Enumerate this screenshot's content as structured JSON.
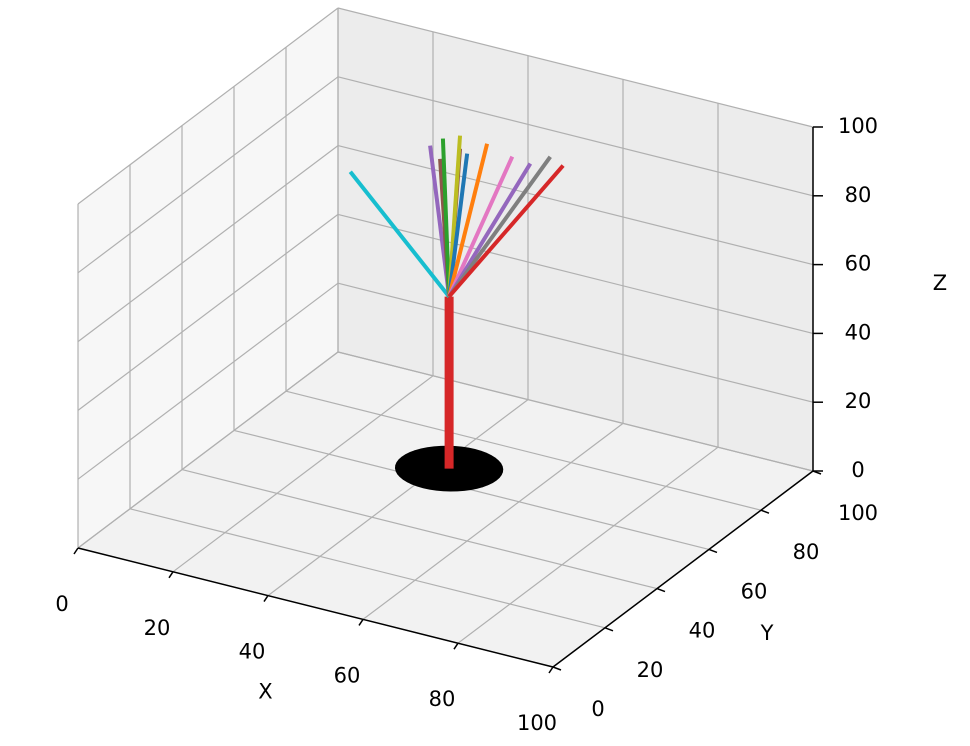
{
  "chart_data": {
    "type": "line3d",
    "xlabel": "X",
    "ylabel": "Y",
    "zlabel": "Z",
    "xlim": [
      0,
      100
    ],
    "ylim": [
      0,
      100
    ],
    "zlim": [
      0,
      100
    ],
    "xticks": [
      0,
      20,
      40,
      60,
      80,
      100
    ],
    "yticks": [
      0,
      20,
      40,
      60,
      80,
      100
    ],
    "zticks": [
      0,
      20,
      40,
      60,
      80,
      100
    ],
    "grid": true,
    "series": [
      {
        "color": "#d62728",
        "linewidth": 9,
        "x": [
          42,
          42
        ],
        "y": [
          66,
          66
        ],
        "z": [
          0,
          50
        ]
      },
      {
        "color": "#17becf",
        "linewidth": 4,
        "x": [
          42,
          21.2
        ],
        "y": [
          66,
          66
        ],
        "z": [
          50,
          79.1
        ]
      },
      {
        "color": "#9467bd",
        "linewidth": 4,
        "x": [
          42,
          38
        ],
        "y": [
          66,
          66
        ],
        "z": [
          50,
          92.5
        ]
      },
      {
        "color": "#8c564b",
        "linewidth": 4,
        "x": [
          42,
          40.1
        ],
        "y": [
          66,
          66
        ],
        "z": [
          50,
          89.4
        ]
      },
      {
        "color": "#2ca02c",
        "linewidth": 4,
        "x": [
          42,
          40.7
        ],
        "y": [
          66,
          66
        ],
        "z": [
          50,
          95.5
        ]
      },
      {
        "color": "#8c564b",
        "linewidth": 4,
        "x": [
          42,
          44.3
        ],
        "y": [
          66,
          66
        ],
        "z": [
          50,
          93.8
        ]
      },
      {
        "color": "#bcbd22",
        "linewidth": 4,
        "x": [
          42,
          44.3
        ],
        "y": [
          66,
          66
        ],
        "z": [
          50,
          97.6
        ]
      },
      {
        "color": "#1f77b4",
        "linewidth": 4,
        "x": [
          42,
          45.8
        ],
        "y": [
          66,
          66
        ],
        "z": [
          50,
          92.9
        ]
      },
      {
        "color": "#ff7f0e",
        "linewidth": 4,
        "x": [
          42,
          50
        ],
        "y": [
          66,
          66
        ],
        "z": [
          50,
          97.2
        ]
      },
      {
        "color": "#e377c2",
        "linewidth": 4,
        "x": [
          42,
          55.3
        ],
        "y": [
          66,
          66
        ],
        "z": [
          50,
          95.3
        ]
      },
      {
        "color": "#9467bd",
        "linewidth": 4,
        "x": [
          42,
          59.1
        ],
        "y": [
          66,
          66
        ],
        "z": [
          50,
          94.6
        ]
      },
      {
        "color": "#7f7f7f",
        "linewidth": 4,
        "x": [
          42,
          63.3
        ],
        "y": [
          66,
          66
        ],
        "z": [
          50,
          98
        ]
      },
      {
        "color": "#d62728",
        "linewidth": 4,
        "x": [
          42,
          66
        ],
        "y": [
          66,
          66
        ],
        "z": [
          50,
          96.4
        ]
      }
    ],
    "disk": {
      "x": 42,
      "y": 66,
      "z": 0,
      "size": 10,
      "color": "#000000"
    }
  }
}
